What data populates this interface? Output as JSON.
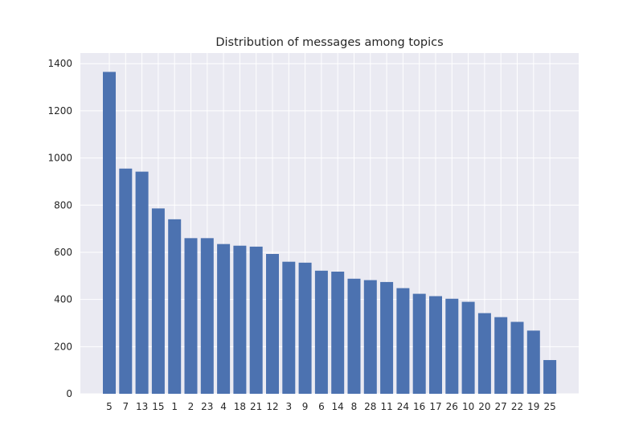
{
  "chart_data": {
    "type": "bar",
    "title": "Distribution of messages among topics",
    "xlabel": "",
    "ylabel": "",
    "categories": [
      "5",
      "7",
      "13",
      "15",
      "1",
      "2",
      "23",
      "4",
      "18",
      "21",
      "12",
      "3",
      "9",
      "6",
      "14",
      "8",
      "28",
      "11",
      "24",
      "16",
      "17",
      "26",
      "10",
      "20",
      "27",
      "22",
      "19",
      "25"
    ],
    "values": [
      1365,
      955,
      942,
      786,
      740,
      660,
      660,
      635,
      628,
      624,
      593,
      560,
      556,
      522,
      518,
      488,
      482,
      474,
      448,
      424,
      414,
      403,
      390,
      342,
      325,
      305,
      268,
      143
    ],
    "ylim": [
      0,
      1445
    ],
    "yticks": [
      0,
      200,
      400,
      600,
      800,
      1000,
      1200,
      1400
    ],
    "grid": true,
    "legend": "none",
    "colors": {
      "bar": "#4c72b0",
      "plot_background": "#eaeaf2",
      "grid": "#ffffff",
      "text": "#262626"
    }
  }
}
